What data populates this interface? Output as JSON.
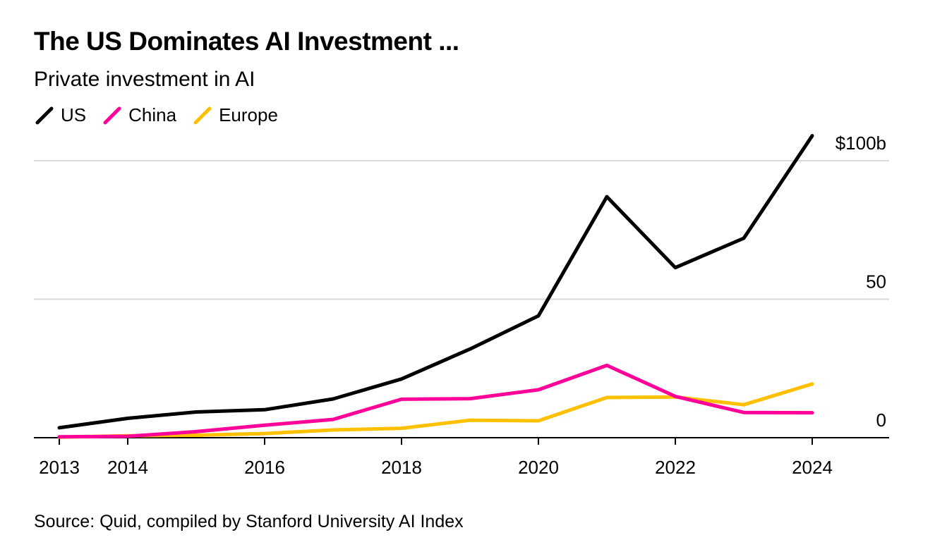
{
  "header": {
    "title": "The US Dominates AI Investment ...",
    "subtitle": "Private investment in AI"
  },
  "legend": [
    {
      "label": "US",
      "color": "#000000"
    },
    {
      "label": "China",
      "color": "#ff0099"
    },
    {
      "label": "Europe",
      "color": "#ffc000"
    }
  ],
  "footer": {
    "source": "Source: Quid, compiled by Stanford University AI Index"
  },
  "chart_data": {
    "type": "line",
    "title": "The US Dominates AI Investment ...",
    "subtitle": "Private investment in AI",
    "xlabel": "",
    "ylabel": "",
    "x": [
      2013,
      2014,
      2015,
      2016,
      2017,
      2018,
      2019,
      2020,
      2021,
      2022,
      2023,
      2024
    ],
    "xlim": [
      2013,
      2025
    ],
    "ylim": [
      0,
      100
    ],
    "x_ticks": [
      {
        "value": 2013,
        "label": "2013"
      },
      {
        "value": 2014,
        "label": "2014"
      },
      {
        "value": 2016,
        "label": "2016"
      },
      {
        "value": 2018,
        "label": "2018"
      },
      {
        "value": 2020,
        "label": "2020"
      },
      {
        "value": 2022,
        "label": "2022"
      },
      {
        "value": 2024,
        "label": "2024"
      }
    ],
    "y_ticks": [
      {
        "value": 0,
        "label": "0"
      },
      {
        "value": 50,
        "label": "50"
      },
      {
        "value": 100,
        "label": "$100b"
      }
    ],
    "grid": true,
    "legend_position": "top-left",
    "series": [
      {
        "name": "US",
        "color": "#000000",
        "values": [
          3.6,
          7.0,
          9.3,
          10.1,
          14.0,
          21.2,
          32.0,
          44.0,
          87.0,
          61.4,
          72.0,
          109.0
        ]
      },
      {
        "name": "China",
        "color": "#ff0099",
        "values": [
          0.3,
          0.5,
          2.2,
          4.5,
          6.6,
          13.9,
          14.1,
          17.3,
          26.1,
          14.9,
          9.1,
          9.0
        ]
      },
      {
        "name": "Europe",
        "color": "#ffc000",
        "values": [
          0.2,
          0.7,
          0.9,
          1.5,
          2.8,
          3.4,
          6.3,
          6.1,
          14.5,
          14.7,
          11.9,
          19.4
        ]
      }
    ]
  }
}
